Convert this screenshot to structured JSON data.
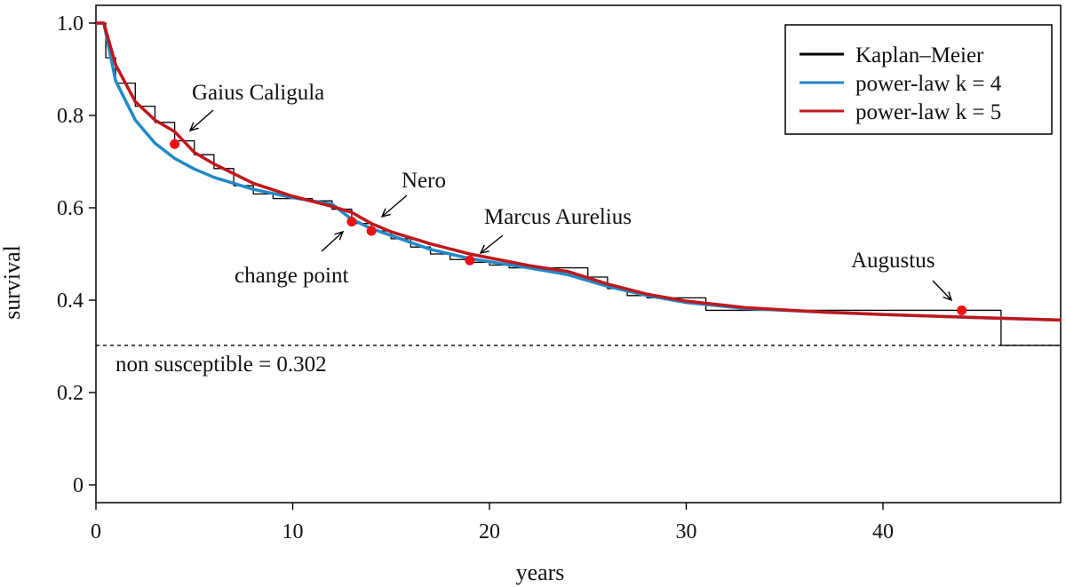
{
  "chart_data": {
    "type": "line",
    "xlabel": "years",
    "ylabel": "survival",
    "xlim": [
      0,
      49
    ],
    "ylim": [
      0,
      1.0
    ],
    "x_ticks": [
      0,
      10,
      20,
      30,
      40
    ],
    "y_ticks": [
      0,
      0.2,
      0.4,
      0.6,
      0.8,
      1.0
    ],
    "y_tick_labels": [
      "0",
      "0.2",
      "0.4",
      "0.6",
      "0.8",
      "1.0"
    ],
    "grid": false,
    "legend_position": "top-right",
    "series": [
      {
        "name": "Kaplan–Meier",
        "style": "step",
        "color": "#000000",
        "x": [
          0,
          0.5,
          1,
          2,
          3,
          4,
          5,
          6,
          7,
          8,
          9,
          10,
          11,
          12,
          13,
          14,
          15,
          16,
          17,
          18,
          19,
          20,
          21,
          22,
          23,
          24,
          25,
          26,
          27,
          28,
          29,
          31,
          35,
          37,
          44,
          46,
          49
        ],
        "y": [
          1.0,
          0.925,
          0.87,
          0.82,
          0.785,
          0.745,
          0.715,
          0.685,
          0.648,
          0.63,
          0.62,
          0.62,
          0.615,
          0.597,
          0.566,
          0.55,
          0.533,
          0.515,
          0.5,
          0.488,
          0.482,
          0.476,
          0.47,
          0.47,
          0.47,
          0.47,
          0.45,
          0.425,
          0.41,
          0.405,
          0.405,
          0.378,
          0.378,
          0.378,
          0.378,
          0.302,
          0.302
        ]
      },
      {
        "name": "power-law k = 4",
        "style": "line",
        "color": "#2089c8",
        "x": [
          0,
          0.4,
          1,
          2,
          3,
          4,
          5,
          6,
          8,
          10,
          12,
          13,
          14,
          15,
          17,
          19,
          22,
          24,
          26,
          28,
          30,
          33,
          37,
          40,
          45,
          49
        ],
        "y": [
          1.0,
          1.0,
          0.875,
          0.79,
          0.74,
          0.707,
          0.684,
          0.666,
          0.64,
          0.622,
          0.608,
          0.575,
          0.555,
          0.54,
          0.51,
          0.49,
          0.47,
          0.455,
          0.43,
          0.41,
          0.395,
          0.382,
          0.374,
          0.369,
          0.362,
          0.357
        ]
      },
      {
        "name": "power-law k = 5",
        "style": "line",
        "color": "#c0171d",
        "x": [
          0,
          0.4,
          1,
          2,
          3,
          4,
          5,
          6,
          8,
          10,
          12,
          13,
          14,
          15,
          17,
          19,
          22,
          24,
          26,
          28,
          30,
          33,
          37,
          40,
          45,
          49
        ],
        "y": [
          1.0,
          1.0,
          0.91,
          0.83,
          0.79,
          0.765,
          0.72,
          0.695,
          0.653,
          0.625,
          0.603,
          0.59,
          0.566,
          0.548,
          0.522,
          0.5,
          0.475,
          0.462,
          0.435,
          0.413,
          0.398,
          0.384,
          0.374,
          0.369,
          0.362,
          0.357
        ]
      }
    ],
    "points": [
      {
        "x": 4,
        "y": 0.738,
        "color": "#ee1111"
      },
      {
        "x": 13,
        "y": 0.57,
        "color": "#ee1111"
      },
      {
        "x": 14,
        "y": 0.55,
        "color": "#ee1111"
      },
      {
        "x": 19,
        "y": 0.486,
        "color": "#ee1111"
      },
      {
        "x": 44,
        "y": 0.378,
        "color": "#ee1111"
      }
    ],
    "reference_line": {
      "y": 0.302,
      "label": "non susceptible = 0.302",
      "style": "dashed"
    },
    "annotations": [
      {
        "text": "Gaius Caligula"
      },
      {
        "text": "Nero"
      },
      {
        "text": "change point"
      },
      {
        "text": "Marcus Aurelius"
      },
      {
        "text": "Augustus"
      }
    ]
  }
}
